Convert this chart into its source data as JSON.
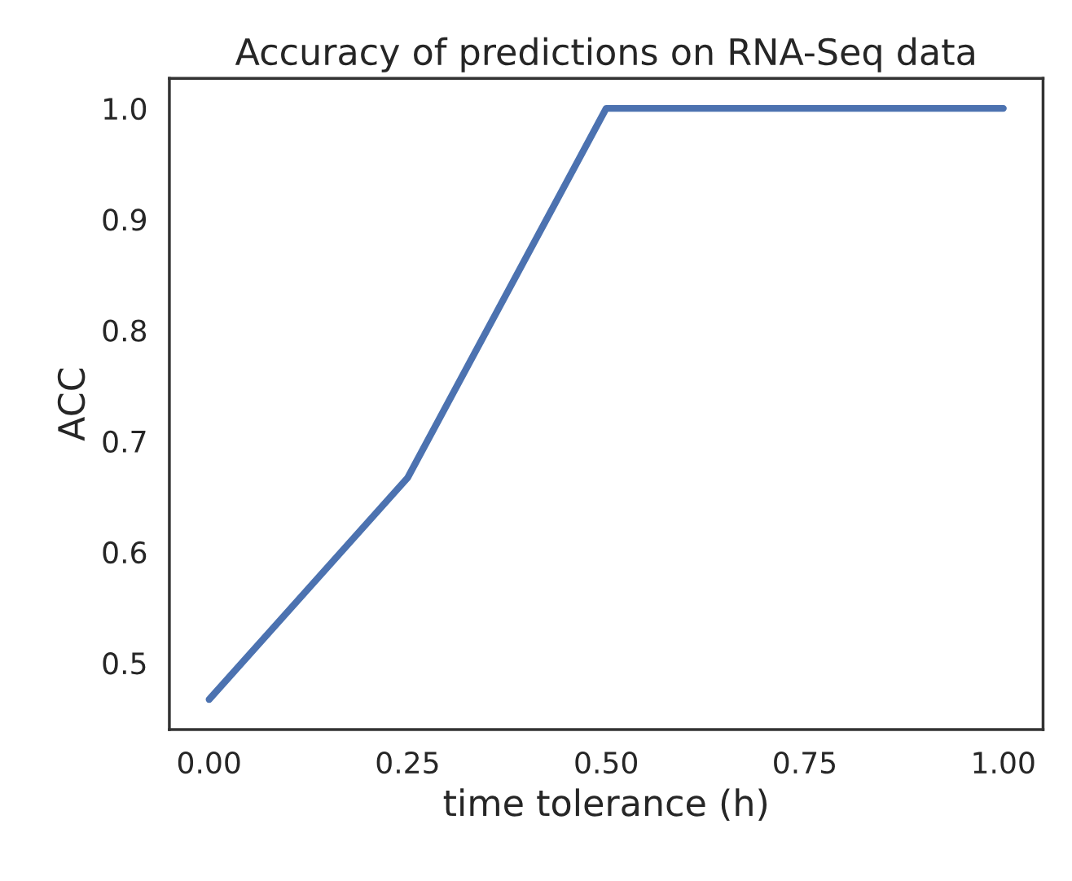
{
  "chart_data": {
    "type": "line",
    "title": "Accuracy of predictions on RNA-Seq data",
    "xlabel": "time tolerance (h)",
    "ylabel": "ACC",
    "x": [
      0,
      0.25,
      0.5,
      0.75,
      1.0
    ],
    "series": [
      {
        "color": "#4c72b0",
        "values": [
          0.467,
          0.667,
          1.0,
          1.0,
          1.0
        ]
      }
    ],
    "xlim": [
      -0.05,
      1.05
    ],
    "xticks": [
      {
        "value": 0,
        "label": "0.00"
      },
      {
        "value": 0.25,
        "label": "0.25"
      },
      {
        "value": 0.5,
        "label": "0.50"
      },
      {
        "value": 0.75,
        "label": "0.75"
      },
      {
        "value": 1.0,
        "label": "1.00"
      }
    ],
    "ylim": [
      0.44,
      1.027
    ],
    "yticks": [
      0.5,
      0.6,
      0.7,
      0.8,
      0.9,
      {
        "value": 1,
        "label": "1.0"
      }
    ],
    "grid": false,
    "legend": false,
    "marker": "none",
    "line_style": "solid"
  }
}
